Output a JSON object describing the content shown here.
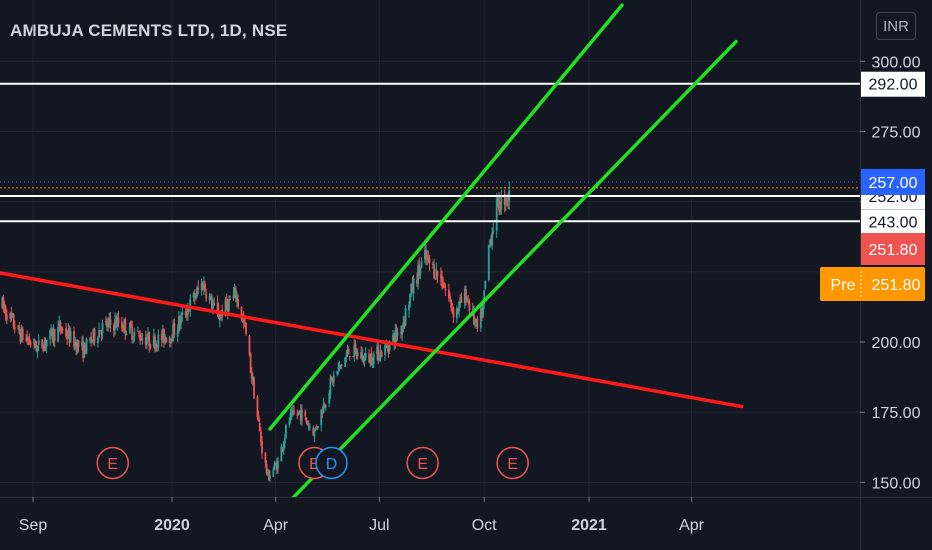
{
  "header": {
    "title": "AMBUJA CEMENTS LTD, 1D, NSE",
    "currency": "INR"
  },
  "colors": {
    "background": "#131722",
    "grid": "#232632",
    "axis_text": "#d1d4dc",
    "up": "#26a69a",
    "down": "#ef5350",
    "trend_red": "#ff1a1a",
    "channel_green": "#22e022",
    "level_white": "#ffffff",
    "current_price": "#ff9800",
    "event_red": "#ef5350",
    "event_blue": "#2196f3"
  },
  "chart_data": {
    "type": "candlestick",
    "ylim": [
      145,
      306
    ],
    "x_ticks": [
      {
        "label": "Sep",
        "date": "2019-09-01"
      },
      {
        "label": "2020",
        "date": "2020-01-01"
      },
      {
        "label": "Apr",
        "date": "2020-04-01"
      },
      {
        "label": "Jul",
        "date": "2020-07-01"
      },
      {
        "label": "Oct",
        "date": "2020-10-01"
      },
      {
        "label": "2021",
        "date": "2021-01-01"
      },
      {
        "label": "Apr",
        "date": "2021-04-01"
      }
    ],
    "y_ticks": [
      150,
      175,
      200,
      225,
      250,
      275,
      300
    ],
    "price_path": [
      [
        "2019-08-05",
        213
      ],
      [
        "2019-08-20",
        203
      ],
      [
        "2019-09-05",
        198
      ],
      [
        "2019-09-25",
        205
      ],
      [
        "2019-10-15",
        197
      ],
      [
        "2019-10-30",
        205
      ],
      [
        "2019-11-15",
        207
      ],
      [
        "2019-11-30",
        203
      ],
      [
        "2019-12-15",
        200
      ],
      [
        "2020-01-01",
        203
      ],
      [
        "2020-01-15",
        212
      ],
      [
        "2020-01-28",
        221
      ],
      [
        "2020-02-10",
        209
      ],
      [
        "2020-02-26",
        217
      ],
      [
        "2020-03-05",
        205
      ],
      [
        "2020-03-12",
        185
      ],
      [
        "2020-03-20",
        162
      ],
      [
        "2020-03-25",
        152
      ],
      [
        "2020-04-03",
        157
      ],
      [
        "2020-04-12",
        172
      ],
      [
        "2020-04-22",
        175
      ],
      [
        "2020-05-05",
        168
      ],
      [
        "2020-05-20",
        186
      ],
      [
        "2020-06-05",
        197
      ],
      [
        "2020-06-20",
        194
      ],
      [
        "2020-07-05",
        197
      ],
      [
        "2020-07-20",
        205
      ],
      [
        "2020-08-01",
        222
      ],
      [
        "2020-08-10",
        230
      ],
      [
        "2020-08-25",
        222
      ],
      [
        "2020-09-05",
        210
      ],
      [
        "2020-09-15",
        217
      ],
      [
        "2020-09-25",
        204
      ],
      [
        "2020-09-30",
        212
      ],
      [
        "2020-10-05",
        234
      ],
      [
        "2020-10-12",
        248
      ],
      [
        "2020-10-20",
        252
      ],
      [
        "2020-10-23",
        251.8
      ]
    ],
    "trend_lines": [
      {
        "name": "descending-trendline",
        "color": "red",
        "points": [
          [
            "2019-07-15",
            226
          ],
          [
            "2021-05-15",
            177
          ]
        ]
      },
      {
        "name": "channel-upper",
        "color": "green",
        "points": [
          [
            "2020-03-27",
            169
          ],
          [
            "2021-01-30",
            320
          ]
        ]
      },
      {
        "name": "channel-lower",
        "color": "green",
        "points": [
          [
            "2020-04-15",
            144
          ],
          [
            "2021-05-10",
            307
          ]
        ]
      }
    ],
    "horizontal_levels": [
      {
        "value": 292.0,
        "label": "292.00"
      },
      {
        "value": 252.0,
        "label": "252.00"
      },
      {
        "value": 243.0,
        "label": "243.00"
      }
    ],
    "price_markers": [
      {
        "value": 257.0,
        "label": "257.00",
        "color": "#2962ff",
        "dotted_line": true
      },
      {
        "value": 251.8,
        "label": "251.80",
        "color": "#ef5350",
        "dotted_line": false
      },
      {
        "value": 251.8,
        "label": "251.80",
        "prefix": "Pre",
        "color": "#ff9800",
        "dotted_line": true
      }
    ],
    "events": [
      {
        "date": "2019-11-10",
        "label": "E",
        "kind": "earnings"
      },
      {
        "date": "2020-05-05",
        "label": "E",
        "kind": "earnings"
      },
      {
        "date": "2020-05-20",
        "label": "D",
        "kind": "dividend"
      },
      {
        "date": "2020-08-08",
        "label": "E",
        "kind": "earnings"
      },
      {
        "date": "2020-10-26",
        "label": "E",
        "kind": "earnings"
      }
    ]
  }
}
